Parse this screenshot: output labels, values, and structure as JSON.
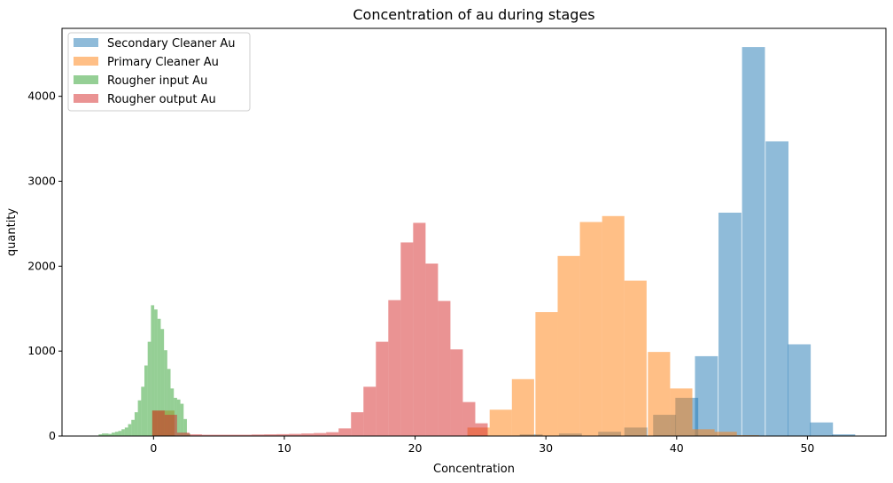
{
  "chart_data": {
    "type": "bar",
    "title": "Concentration of au during stages",
    "xlabel": "Concentration",
    "ylabel": "quantity",
    "xlim": [
      -7,
      56
    ],
    "ylim": [
      0,
      4800
    ],
    "xticks": [
      0,
      10,
      20,
      30,
      40,
      50
    ],
    "yticks": [
      0,
      1000,
      2000,
      3000,
      4000
    ],
    "grid": false,
    "legend_position": "top-left",
    "series": [
      {
        "name": "Secondary Cleaner Au",
        "color": "#1f77b4",
        "opacity": 0.5,
        "bin_width": 1.75,
        "bins": [
          [
            -0.1,
            10
          ],
          [
            28,
            20
          ],
          [
            31,
            30
          ],
          [
            34,
            50
          ],
          [
            36,
            100
          ],
          [
            38.2,
            250
          ],
          [
            39.9,
            450
          ],
          [
            41.4,
            940
          ],
          [
            43.2,
            2630
          ],
          [
            45.0,
            4580
          ],
          [
            46.8,
            3470
          ],
          [
            48.5,
            1080
          ],
          [
            50.2,
            160
          ],
          [
            51.9,
            20
          ]
        ]
      },
      {
        "name": "Primary Cleaner Au",
        "color": "#ff7f0e",
        "opacity": 0.5,
        "bin_width": 1.7,
        "bins": [
          [
            -0.1,
            300
          ],
          [
            24.0,
            100
          ],
          [
            25.7,
            310
          ],
          [
            27.4,
            670
          ],
          [
            29.2,
            1460
          ],
          [
            30.9,
            2120
          ],
          [
            32.6,
            2520
          ],
          [
            34.3,
            2590
          ],
          [
            36.0,
            1830
          ],
          [
            37.8,
            990
          ],
          [
            39.5,
            560
          ],
          [
            41.2,
            80
          ],
          [
            42.9,
            50
          ],
          [
            44.6,
            10
          ]
        ]
      },
      {
        "name": "Rougher input Au",
        "color": "#2ca02c",
        "opacity": 0.5,
        "bin_width": 0.25,
        "bins": [
          [
            -4.2,
            20
          ],
          [
            -3.95,
            30
          ],
          [
            -3.7,
            30
          ],
          [
            -3.45,
            25
          ],
          [
            -3.2,
            40
          ],
          [
            -2.95,
            50
          ],
          [
            -2.7,
            60
          ],
          [
            -2.45,
            80
          ],
          [
            -2.2,
            100
          ],
          [
            -1.95,
            140
          ],
          [
            -1.7,
            190
          ],
          [
            -1.45,
            280
          ],
          [
            -1.2,
            420
          ],
          [
            -0.95,
            580
          ],
          [
            -0.7,
            830
          ],
          [
            -0.45,
            1110
          ],
          [
            -0.2,
            1540
          ],
          [
            0.05,
            1490
          ],
          [
            0.3,
            1380
          ],
          [
            0.55,
            1260
          ],
          [
            0.8,
            1010
          ],
          [
            1.05,
            790
          ],
          [
            1.3,
            560
          ],
          [
            1.55,
            450
          ],
          [
            1.8,
            430
          ],
          [
            2.05,
            380
          ],
          [
            2.3,
            200
          ],
          [
            2.55,
            30
          ]
        ]
      },
      {
        "name": "Rougher output Au",
        "color": "#d62728",
        "opacity": 0.5,
        "bin_width": 0.95,
        "bins": [
          [
            -0.1,
            300
          ],
          [
            0.85,
            250
          ],
          [
            1.8,
            40
          ],
          [
            2.75,
            20
          ],
          [
            3.7,
            15
          ],
          [
            4.65,
            15
          ],
          [
            5.6,
            15
          ],
          [
            6.55,
            15
          ],
          [
            7.5,
            18
          ],
          [
            8.45,
            20
          ],
          [
            9.4,
            22
          ],
          [
            10.35,
            25
          ],
          [
            11.3,
            30
          ],
          [
            12.25,
            35
          ],
          [
            13.2,
            45
          ],
          [
            14.15,
            90
          ],
          [
            15.1,
            280
          ],
          [
            16.05,
            580
          ],
          [
            17.0,
            1110
          ],
          [
            17.95,
            1600
          ],
          [
            18.9,
            2280
          ],
          [
            19.85,
            2510
          ],
          [
            20.8,
            2030
          ],
          [
            21.75,
            1590
          ],
          [
            22.7,
            1020
          ],
          [
            23.65,
            400
          ],
          [
            24.6,
            150
          ]
        ]
      }
    ]
  }
}
